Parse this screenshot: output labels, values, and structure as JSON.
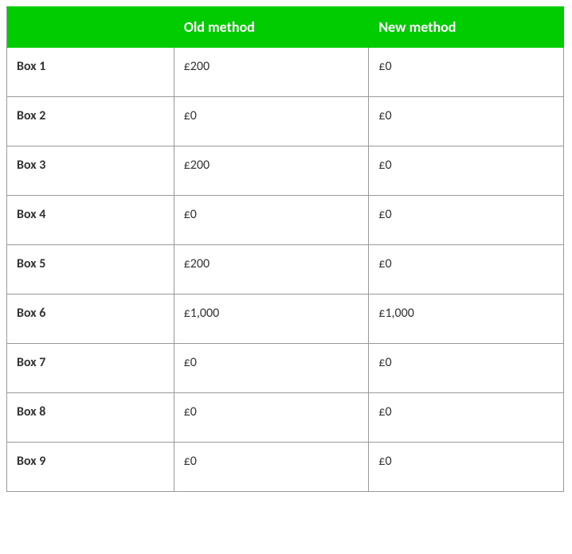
{
  "table": {
    "type": "table",
    "header_bg": "#00cc00",
    "header_text_color": "#ffffff",
    "border_color": "#999999",
    "cell_text_color": "#333333",
    "font_family": "Calibri",
    "header_fontsize": 18,
    "cell_fontsize": 16,
    "columns": [
      {
        "label": "",
        "width_pct": 30
      },
      {
        "label": "Old method",
        "width_pct": 35
      },
      {
        "label": "New method",
        "width_pct": 35
      }
    ],
    "rows": [
      {
        "label": "Box 1",
        "old": "£200",
        "new": "£0"
      },
      {
        "label": "Box 2",
        "old": "£0",
        "new": "£0"
      },
      {
        "label": "Box 3",
        "old": "£200",
        "new": "£0"
      },
      {
        "label": "Box 4",
        "old": "£0",
        "new": "£0"
      },
      {
        "label": "Box 5",
        "old": "£200",
        "new": "£0"
      },
      {
        "label": "Box 6",
        "old": "£1,000",
        "new": "£1,000"
      },
      {
        "label": "Box 7",
        "old": "£0",
        "new": "£0"
      },
      {
        "label": "Box 8",
        "old": "£0",
        "new": "£0"
      },
      {
        "label": "Box 9",
        "old": "£0",
        "new": "£0"
      }
    ]
  }
}
